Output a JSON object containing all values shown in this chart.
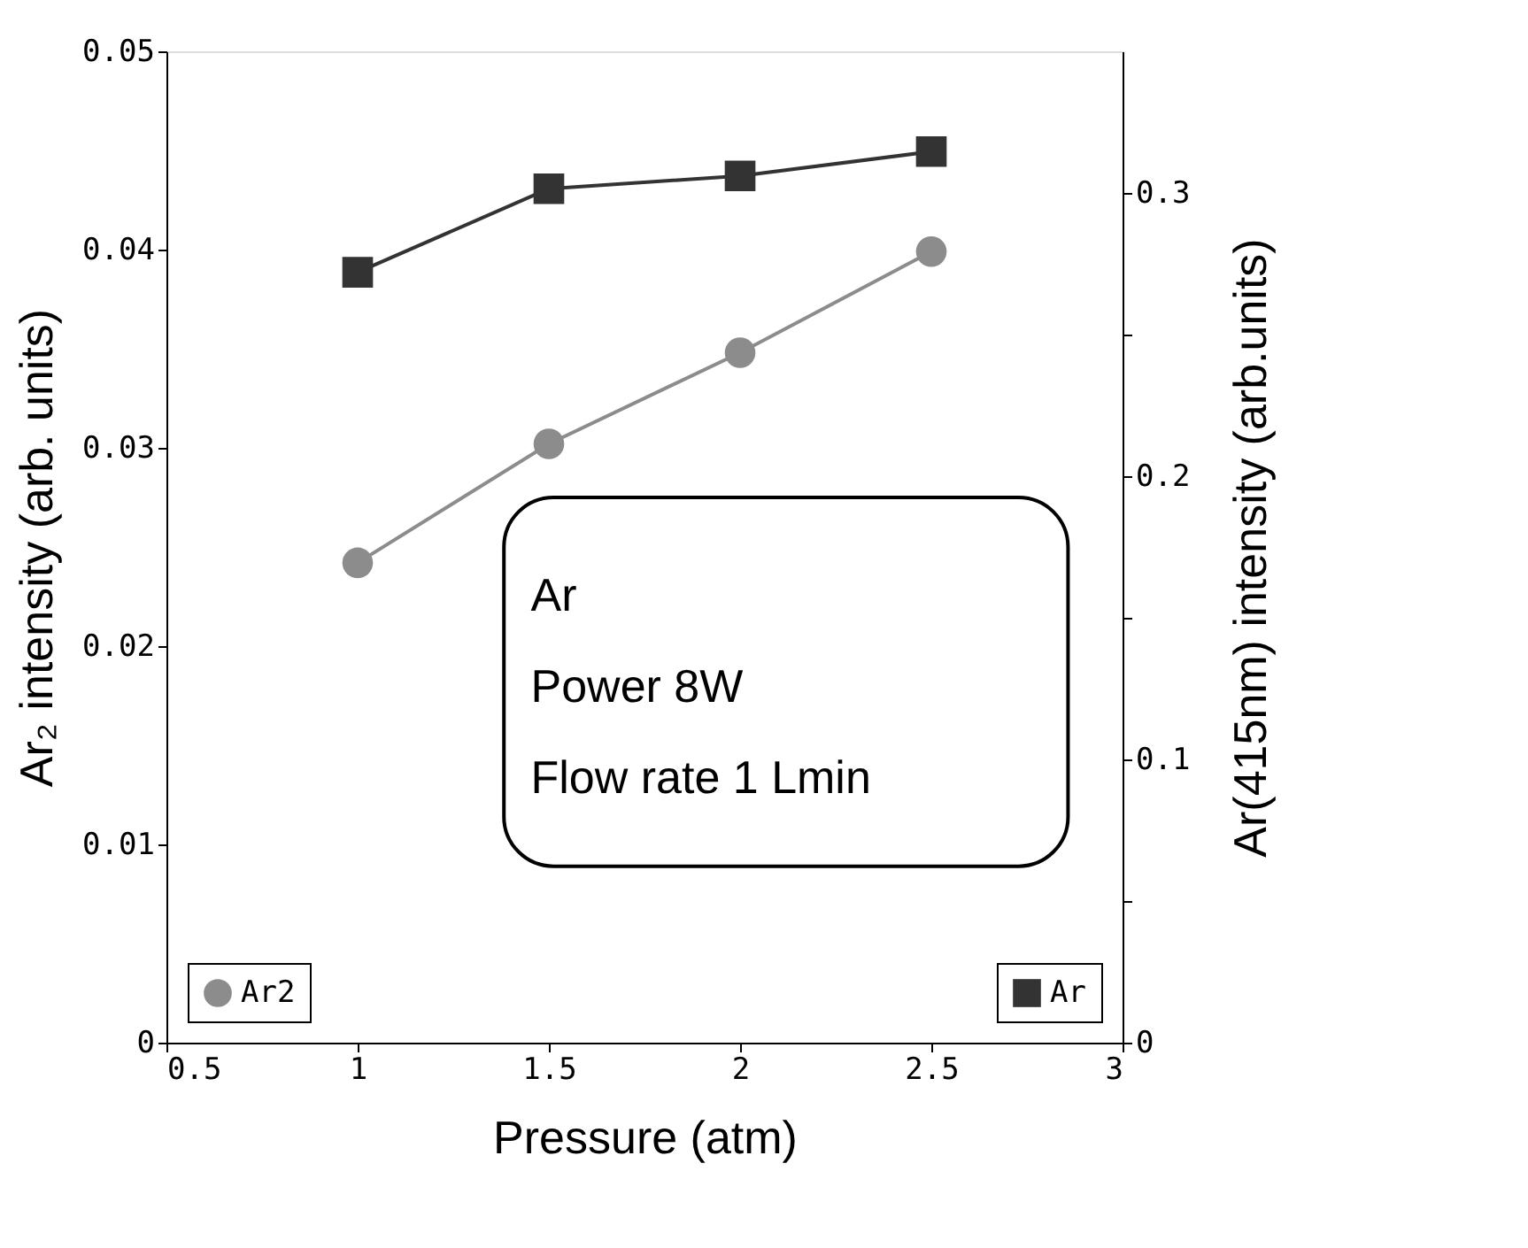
{
  "chart_data": {
    "type": "line",
    "xlabel": "Pressure (atm)",
    "ylabel": "Ar₂ intensity (arb. units)",
    "y2label": "Ar(415nm) intensity (arb.units)",
    "x": [
      1,
      1.5,
      2,
      2.5
    ],
    "series": [
      {
        "name": "Ar2",
        "color": "#8c8c8c",
        "values": [
          0.0242,
          0.0302,
          0.0348,
          0.0399
        ],
        "marker": "circle"
      },
      {
        "name": "Ar",
        "color": "#333333",
        "values": [
          0.272,
          0.3015,
          0.306,
          0.3146
        ],
        "marker": "square",
        "axis": "y2"
      }
    ],
    "xlim": [
      0.5,
      3
    ],
    "xticks": [
      0.5,
      1,
      1.5,
      2,
      2.5,
      3
    ],
    "ylim": [
      0,
      0.05
    ],
    "yticks": [
      0,
      0.01,
      0.02,
      0.03,
      0.04,
      0.05
    ],
    "y2lim": [
      0,
      0.35
    ],
    "y2ticks": [
      0,
      {
        "value": 0.05,
        "label": null
      },
      0.1,
      {
        "value": 0.15,
        "label": null
      },
      0.2,
      {
        "value": 0.25,
        "label": null
      },
      0.3
    ],
    "annotations": [
      "Ar",
      "Power 8W",
      "Flow rate 1 Lmin"
    ],
    "legend": "bottom",
    "grid": false,
    "line_style": "solid"
  }
}
